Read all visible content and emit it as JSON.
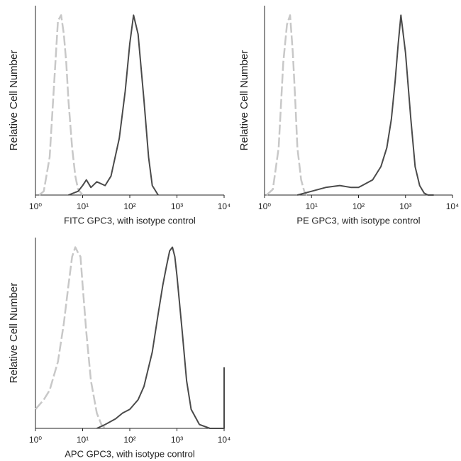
{
  "chart_data": [
    {
      "type": "line",
      "xlabel": "FITC GPC3, with isotype control",
      "ylabel": "Relative Cell Number",
      "log_x": true,
      "xlim": [
        1,
        10000
      ],
      "xticks": [
        {
          "value": 1,
          "label": "10⁰"
        },
        {
          "value": 10,
          "label": "10¹"
        },
        {
          "value": 100,
          "label": "10²"
        },
        {
          "value": 1000,
          "label": "10³"
        },
        {
          "value": 10000,
          "label": "10⁴"
        }
      ],
      "ylim": [
        0,
        100
      ],
      "series": [
        {
          "color": "#c8c8c8",
          "dashed": true,
          "x": [
            1.2,
            1.5,
            2,
            2.5,
            3,
            3.5,
            4,
            4.5,
            5,
            6,
            7,
            8,
            10
          ],
          "values": [
            0,
            2,
            20,
            60,
            92,
            95,
            85,
            70,
            50,
            25,
            10,
            3,
            0
          ]
        },
        {
          "color": "#4a4a4a",
          "dashed": false,
          "x": [
            5,
            8,
            10,
            12,
            15,
            20,
            30,
            40,
            60,
            80,
            100,
            120,
            150,
            200,
            250,
            300,
            400
          ],
          "values": [
            0,
            2,
            5,
            8,
            4,
            7,
            5,
            10,
            30,
            55,
            80,
            95,
            85,
            50,
            20,
            5,
            0
          ]
        }
      ]
    },
    {
      "type": "line",
      "xlabel": "PE GPC3, with isotype control",
      "ylabel": "Relative Cell Number",
      "log_x": true,
      "xlim": [
        1,
        10000
      ],
      "xticks": [
        {
          "value": 1,
          "label": "10⁰"
        },
        {
          "value": 10,
          "label": "10¹"
        },
        {
          "value": 100,
          "label": "10²"
        },
        {
          "value": 1000,
          "label": "10³"
        },
        {
          "value": 10000,
          "label": "10⁴"
        }
      ],
      "ylim": [
        0,
        100
      ],
      "series": [
        {
          "color": "#c8c8c8",
          "dashed": true,
          "x": [
            1.1,
            1.5,
            2,
            2.5,
            3,
            3.5,
            4,
            4.5,
            5,
            6,
            7,
            8
          ],
          "values": [
            0,
            3,
            25,
            70,
            90,
            95,
            75,
            50,
            25,
            8,
            2,
            0
          ]
        },
        {
          "color": "#4a4a4a",
          "dashed": false,
          "x": [
            5,
            10,
            20,
            40,
            70,
            100,
            200,
            300,
            400,
            500,
            600,
            700,
            800,
            1000,
            1300,
            1600,
            2000,
            2500,
            3000,
            4000
          ],
          "values": [
            0,
            2,
            4,
            5,
            4,
            4,
            8,
            15,
            25,
            40,
            60,
            80,
            95,
            75,
            40,
            15,
            5,
            1,
            0,
            0
          ]
        }
      ]
    },
    {
      "type": "line",
      "xlabel": "APC GPC3, with isotype control",
      "ylabel": "Relative Cell Number",
      "log_x": true,
      "xlim": [
        1,
        10000
      ],
      "xticks": [
        {
          "value": 1,
          "label": "10⁰"
        },
        {
          "value": 10,
          "label": "10¹"
        },
        {
          "value": 100,
          "label": "10²"
        },
        {
          "value": 1000,
          "label": "10³"
        },
        {
          "value": 10000,
          "label": "10⁴"
        }
      ],
      "ylim": [
        0,
        100
      ],
      "series": [
        {
          "color": "#c8c8c8",
          "dashed": true,
          "x": [
            1,
            1.5,
            2,
            3,
            4,
            5,
            6,
            7,
            8,
            9,
            10,
            12,
            15,
            20,
            25,
            30
          ],
          "values": [
            10,
            15,
            20,
            35,
            55,
            75,
            90,
            95,
            92,
            90,
            75,
            50,
            25,
            8,
            2,
            0
          ]
        },
        {
          "color": "#4a4a4a",
          "dashed": false,
          "x": [
            20,
            30,
            50,
            70,
            100,
            150,
            200,
            300,
            400,
            500,
            600,
            700,
            800,
            900,
            1000,
            1300,
            1600,
            2000,
            3000,
            5000,
            8000,
            10000,
            10000
          ],
          "values": [
            0,
            2,
            5,
            8,
            10,
            15,
            22,
            40,
            60,
            75,
            85,
            93,
            95,
            90,
            80,
            50,
            25,
            10,
            2,
            0,
            0,
            0,
            32
          ]
        }
      ]
    }
  ]
}
